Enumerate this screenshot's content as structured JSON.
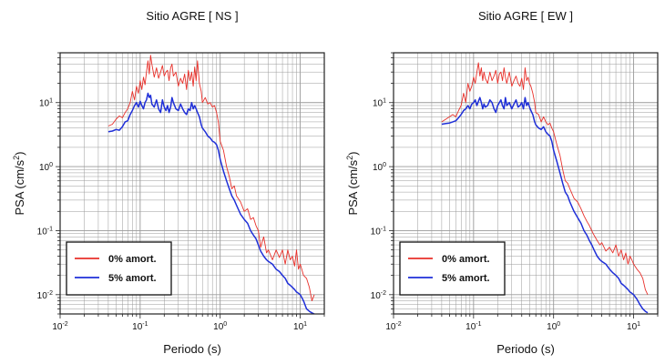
{
  "chart_data": [
    {
      "type": "line",
      "title": "Sitio AGRE [ NS ]",
      "xlabel": "Periodo (s)",
      "ylabel_base": "PSA (cm/s",
      "ylabel_sup": "2",
      "ylabel_end": ")",
      "xscale": "log",
      "yscale": "log",
      "xlim": [
        0.01,
        20
      ],
      "ylim": [
        0.005,
        60
      ],
      "grid": true,
      "legend_position": "bottom-left",
      "series": [
        {
          "name": "0% amort.",
          "color": "#e8302a",
          "x": [
            0.04,
            0.045,
            0.05,
            0.055,
            0.06,
            0.065,
            0.07,
            0.075,
            0.08,
            0.085,
            0.09,
            0.095,
            0.1,
            0.105,
            0.11,
            0.115,
            0.12,
            0.125,
            0.13,
            0.135,
            0.14,
            0.15,
            0.16,
            0.17,
            0.18,
            0.19,
            0.2,
            0.21,
            0.22,
            0.23,
            0.24,
            0.25,
            0.26,
            0.28,
            0.3,
            0.32,
            0.34,
            0.36,
            0.38,
            0.4,
            0.42,
            0.44,
            0.46,
            0.48,
            0.5,
            0.52,
            0.55,
            0.58,
            0.6,
            0.65,
            0.7,
            0.75,
            0.8,
            0.85,
            0.9,
            0.95,
            1.0,
            1.1,
            1.2,
            1.3,
            1.4,
            1.5,
            1.6,
            1.8,
            2.0,
            2.2,
            2.4,
            2.6,
            2.8,
            3.0,
            3.2,
            3.5,
            3.8,
            4.0,
            4.5,
            5.0,
            5.5,
            6.0,
            6.5,
            7.0,
            7.5,
            8.0,
            8.5,
            9.0,
            9.5,
            10.0,
            11.0,
            12.0,
            13.0,
            14.0,
            15.0
          ],
          "y": [
            4.3,
            4.6,
            5.5,
            6.2,
            5.8,
            7.0,
            8.0,
            10.0,
            15.0,
            11.0,
            18.0,
            14.0,
            22.0,
            16.0,
            25.0,
            19.0,
            30.0,
            45.0,
            28.0,
            55.0,
            40.0,
            25.0,
            35.0,
            24.0,
            30.0,
            38.0,
            26.0,
            30.0,
            32.0,
            22.0,
            35.0,
            40.0,
            26.0,
            30.0,
            18.0,
            24.0,
            20.0,
            28.0,
            16.0,
            32.0,
            22.0,
            30.0,
            18.0,
            36.0,
            22.0,
            45.0,
            20.0,
            15.0,
            10.0,
            12.0,
            9.5,
            10.0,
            8.5,
            9.0,
            7.0,
            5.0,
            2.5,
            1.8,
            1.0,
            0.7,
            0.45,
            0.5,
            0.35,
            0.28,
            0.2,
            0.22,
            0.15,
            0.16,
            0.12,
            0.1,
            0.055,
            0.08,
            0.045,
            0.05,
            0.035,
            0.05,
            0.038,
            0.05,
            0.03,
            0.05,
            0.035,
            0.04,
            0.028,
            0.05,
            0.025,
            0.03,
            0.02,
            0.018,
            0.013,
            0.008,
            0.01
          ]
        },
        {
          "name": "5% amort.",
          "color": "#1f2fd8",
          "x": [
            0.04,
            0.045,
            0.05,
            0.055,
            0.06,
            0.065,
            0.07,
            0.075,
            0.08,
            0.085,
            0.09,
            0.095,
            0.1,
            0.105,
            0.11,
            0.115,
            0.12,
            0.125,
            0.13,
            0.135,
            0.14,
            0.15,
            0.16,
            0.17,
            0.18,
            0.19,
            0.2,
            0.21,
            0.22,
            0.23,
            0.24,
            0.25,
            0.26,
            0.28,
            0.3,
            0.32,
            0.34,
            0.36,
            0.38,
            0.4,
            0.42,
            0.44,
            0.46,
            0.48,
            0.5,
            0.52,
            0.55,
            0.58,
            0.6,
            0.65,
            0.7,
            0.75,
            0.8,
            0.85,
            0.9,
            0.95,
            1.0,
            1.1,
            1.2,
            1.3,
            1.4,
            1.5,
            1.6,
            1.8,
            2.0,
            2.2,
            2.4,
            2.6,
            2.8,
            3.0,
            3.2,
            3.5,
            3.8,
            4.0,
            4.5,
            5.0,
            5.5,
            6.0,
            6.5,
            7.0,
            7.5,
            8.0,
            8.5,
            9.0,
            9.5,
            10.0,
            11.0,
            12.0,
            13.0,
            14.0,
            15.0
          ],
          "y": [
            3.5,
            3.6,
            3.8,
            3.7,
            4.2,
            5.0,
            5.2,
            6.5,
            7.5,
            9.0,
            10.0,
            8.5,
            10.5,
            9.0,
            8.0,
            10.0,
            11.0,
            14.0,
            12.0,
            13.0,
            9.5,
            8.5,
            11.0,
            8.0,
            7.0,
            11.0,
            8.5,
            7.5,
            9.0,
            7.0,
            8.5,
            12.0,
            10.0,
            8.0,
            7.5,
            9.5,
            8.0,
            7.0,
            6.5,
            8.0,
            7.5,
            10.0,
            8.0,
            9.0,
            8.0,
            7.0,
            6.0,
            4.5,
            4.0,
            3.5,
            3.0,
            2.8,
            2.5,
            2.4,
            2.2,
            1.8,
            1.3,
            0.85,
            0.6,
            0.45,
            0.35,
            0.3,
            0.25,
            0.18,
            0.15,
            0.13,
            0.1,
            0.085,
            0.075,
            0.06,
            0.048,
            0.04,
            0.035,
            0.033,
            0.03,
            0.025,
            0.023,
            0.02,
            0.018,
            0.015,
            0.014,
            0.013,
            0.012,
            0.011,
            0.0105,
            0.01,
            0.008,
            0.006,
            0.0055,
            0.0052,
            0.005
          ]
        }
      ]
    },
    {
      "type": "line",
      "title": "Sitio AGRE [ EW ]",
      "xlabel": "Periodo (s)",
      "ylabel_base": "PSA (cm/s",
      "ylabel_sup": "2",
      "ylabel_end": ")",
      "xscale": "log",
      "yscale": "log",
      "xlim": [
        0.01,
        20
      ],
      "ylim": [
        0.005,
        60
      ],
      "grid": true,
      "legend_position": "bottom-left",
      "series": [
        {
          "name": "0% amort.",
          "color": "#e8302a",
          "x": [
            0.04,
            0.045,
            0.05,
            0.055,
            0.06,
            0.065,
            0.07,
            0.075,
            0.08,
            0.085,
            0.09,
            0.095,
            0.1,
            0.105,
            0.11,
            0.115,
            0.12,
            0.125,
            0.13,
            0.135,
            0.14,
            0.15,
            0.16,
            0.17,
            0.18,
            0.19,
            0.2,
            0.21,
            0.22,
            0.23,
            0.24,
            0.25,
            0.26,
            0.28,
            0.3,
            0.32,
            0.34,
            0.36,
            0.38,
            0.4,
            0.42,
            0.44,
            0.46,
            0.48,
            0.5,
            0.52,
            0.55,
            0.58,
            0.6,
            0.65,
            0.7,
            0.75,
            0.8,
            0.85,
            0.9,
            0.95,
            1.0,
            1.1,
            1.2,
            1.3,
            1.4,
            1.5,
            1.6,
            1.8,
            2.0,
            2.2,
            2.4,
            2.6,
            2.8,
            3.0,
            3.2,
            3.5,
            3.8,
            4.0,
            4.5,
            5.0,
            5.5,
            6.0,
            6.5,
            7.0,
            7.5,
            8.0,
            8.5,
            9.0,
            9.5,
            10.0,
            11.0,
            12.0,
            13.0,
            14.0,
            15.0
          ],
          "y": [
            5.0,
            5.5,
            6.0,
            6.5,
            6.0,
            7.5,
            9.0,
            14.0,
            10.0,
            20.0,
            15.0,
            18.0,
            25.0,
            20.0,
            30.0,
            42.0,
            26.0,
            35.0,
            22.0,
            30.0,
            24.0,
            20.0,
            30.0,
            22.0,
            26.0,
            32.0,
            20.0,
            28.0,
            30.0,
            22.0,
            35.0,
            25.0,
            20.0,
            30.0,
            18.0,
            22.0,
            26.0,
            20.0,
            18.0,
            24.0,
            16.0,
            35.0,
            22.0,
            25.0,
            20.0,
            18.0,
            14.0,
            10.0,
            7.0,
            6.5,
            5.0,
            6.0,
            5.0,
            4.5,
            4.8,
            4.0,
            3.5,
            2.2,
            1.5,
            0.9,
            0.6,
            0.55,
            0.45,
            0.32,
            0.28,
            0.22,
            0.17,
            0.14,
            0.12,
            0.1,
            0.085,
            0.07,
            0.06,
            0.065,
            0.048,
            0.055,
            0.045,
            0.06,
            0.04,
            0.05,
            0.035,
            0.045,
            0.03,
            0.04,
            0.035,
            0.03,
            0.025,
            0.022,
            0.018,
            0.012,
            0.01
          ]
        },
        {
          "name": "5% amort.",
          "color": "#1f2fd8",
          "x": [
            0.04,
            0.045,
            0.05,
            0.055,
            0.06,
            0.065,
            0.07,
            0.075,
            0.08,
            0.085,
            0.09,
            0.095,
            0.1,
            0.105,
            0.11,
            0.115,
            0.12,
            0.125,
            0.13,
            0.135,
            0.14,
            0.15,
            0.16,
            0.17,
            0.18,
            0.19,
            0.2,
            0.21,
            0.22,
            0.23,
            0.24,
            0.25,
            0.26,
            0.28,
            0.3,
            0.32,
            0.34,
            0.36,
            0.38,
            0.4,
            0.42,
            0.44,
            0.46,
            0.48,
            0.5,
            0.52,
            0.55,
            0.58,
            0.6,
            0.65,
            0.7,
            0.75,
            0.8,
            0.85,
            0.9,
            0.95,
            1.0,
            1.1,
            1.2,
            1.3,
            1.4,
            1.5,
            1.6,
            1.8,
            2.0,
            2.2,
            2.4,
            2.6,
            2.8,
            3.0,
            3.2,
            3.5,
            3.8,
            4.0,
            4.5,
            5.0,
            5.5,
            6.0,
            6.5,
            7.0,
            7.5,
            8.0,
            8.5,
            9.0,
            9.5,
            10.0,
            11.0,
            12.0,
            13.0,
            14.0,
            15.0
          ],
          "y": [
            4.6,
            4.7,
            4.8,
            5.0,
            5.2,
            5.8,
            6.5,
            7.5,
            8.0,
            9.0,
            8.0,
            9.5,
            10.0,
            11.0,
            9.0,
            10.5,
            12.0,
            10.0,
            8.0,
            9.5,
            8.5,
            9.0,
            11.0,
            10.0,
            8.0,
            7.0,
            9.0,
            10.0,
            11.0,
            9.0,
            8.0,
            12.0,
            9.0,
            10.0,
            8.0,
            9.5,
            11.0,
            8.5,
            9.0,
            10.0,
            8.0,
            12.0,
            9.0,
            10.0,
            8.5,
            7.5,
            6.5,
            5.0,
            4.5,
            4.0,
            3.8,
            4.2,
            3.5,
            3.2,
            3.0,
            2.5,
            1.8,
            1.2,
            0.8,
            0.55,
            0.4,
            0.35,
            0.28,
            0.2,
            0.16,
            0.13,
            0.1,
            0.085,
            0.07,
            0.06,
            0.05,
            0.04,
            0.035,
            0.033,
            0.03,
            0.025,
            0.022,
            0.02,
            0.018,
            0.015,
            0.014,
            0.013,
            0.012,
            0.011,
            0.0105,
            0.01,
            0.0085,
            0.007,
            0.006,
            0.0055,
            0.0052
          ]
        }
      ]
    }
  ]
}
